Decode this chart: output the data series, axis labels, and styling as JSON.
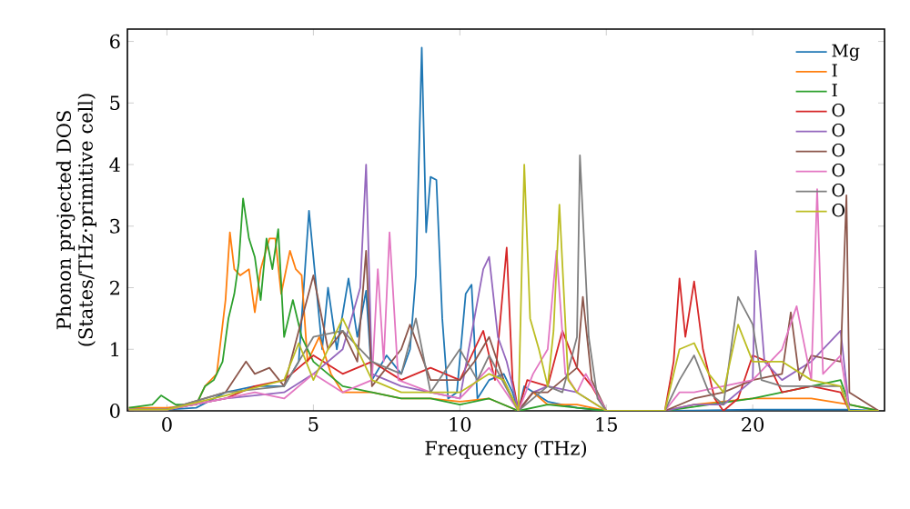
{
  "chart_data": {
    "type": "line",
    "xlabel": "Frequency (THz)",
    "ylabel": "Phonon projected DOS (States/THz·primitive cell)",
    "xlim": [
      -1.35,
      24.5
    ],
    "ylim": [
      0,
      6.2
    ],
    "xticks": [
      0,
      5,
      10,
      15,
      20
    ],
    "yticks": [
      0,
      1,
      2,
      3,
      4,
      5,
      6
    ],
    "legend": "top right",
    "series": [
      {
        "name": "Mg",
        "color": "#1f77b4",
        "x": [
          -1.3,
          0,
          1,
          2,
          3,
          4,
          4.5,
          4.85,
          5.3,
          5.5,
          5.8,
          6.2,
          6.5,
          6.8,
          7,
          7.5,
          8,
          8.3,
          8.5,
          8.7,
          8.85,
          9.0,
          9.2,
          9.4,
          9.6,
          9.9,
          10.2,
          10.4,
          10.6,
          11,
          11.5,
          11.8,
          12.0,
          12.2,
          13,
          14,
          15,
          17,
          20,
          23.3,
          24.3
        ],
        "values": [
          0.02,
          0.02,
          0.05,
          0.3,
          0.4,
          0.4,
          0.8,
          3.25,
          1.0,
          2.0,
          1.0,
          2.15,
          1.2,
          1.95,
          0.5,
          0.9,
          0.6,
          1.0,
          2.2,
          5.9,
          2.9,
          3.8,
          3.75,
          1.5,
          0.2,
          0.3,
          1.9,
          2.05,
          0.2,
          0.5,
          0.6,
          0.3,
          0,
          0.4,
          0.15,
          0.05,
          0,
          0,
          0.02,
          0.02,
          0
        ]
      },
      {
        "name": "I",
        "color": "#ff7f0e",
        "x": [
          -1.3,
          0,
          1,
          1.3,
          1.7,
          2.0,
          2.15,
          2.3,
          2.5,
          2.8,
          3.0,
          3.2,
          3.5,
          3.7,
          3.9,
          4.2,
          4.4,
          4.6,
          4.8,
          5.2,
          5.6,
          6,
          7,
          8,
          9,
          10,
          11,
          12,
          12.5,
          13,
          14,
          15,
          17,
          18,
          20,
          22,
          23.3,
          24.3
        ],
        "values": [
          0.05,
          0.05,
          0.1,
          0.4,
          0.6,
          1.8,
          2.9,
          2.3,
          2.2,
          2.3,
          1.6,
          2.3,
          2.8,
          2.8,
          1.9,
          2.6,
          2.3,
          2.2,
          0.8,
          1.2,
          0.6,
          0.3,
          0.3,
          0.2,
          0.2,
          0.15,
          0.2,
          0,
          0.3,
          0.1,
          0.1,
          0,
          0,
          0.1,
          0.2,
          0.2,
          0.1,
          0
        ]
      },
      {
        "name": "I",
        "color": "#2ca02c",
        "x": [
          -1.3,
          -0.5,
          -0.2,
          0.3,
          1,
          1.3,
          1.6,
          1.9,
          2.1,
          2.3,
          2.45,
          2.6,
          2.8,
          3.0,
          3.2,
          3.4,
          3.6,
          3.8,
          4.0,
          4.3,
          4.6,
          5,
          6,
          7,
          8,
          9,
          10,
          11,
          12,
          13,
          14,
          15,
          17,
          20,
          21,
          23,
          23.3,
          24.3
        ],
        "values": [
          0.05,
          0.1,
          0.25,
          0.1,
          0.1,
          0.4,
          0.5,
          0.8,
          1.5,
          1.9,
          2.4,
          3.45,
          2.8,
          2.5,
          1.8,
          2.8,
          2.3,
          2.95,
          1.2,
          1.8,
          1.2,
          0.8,
          0.4,
          0.3,
          0.2,
          0.2,
          0.1,
          0.2,
          0,
          0.1,
          0.05,
          0,
          0,
          0.2,
          0.3,
          0.5,
          0.1,
          0
        ]
      },
      {
        "name": "O",
        "color": "#d62728",
        "x": [
          -1.3,
          0,
          2,
          3,
          4,
          5,
          6,
          7,
          8,
          9,
          10,
          10.8,
          11.2,
          11.6,
          11.8,
          12,
          12.3,
          13,
          13.5,
          14,
          14.5,
          15,
          17,
          17.3,
          17.5,
          17.7,
          18,
          18.3,
          18.7,
          19,
          19.5,
          20,
          20.5,
          21,
          22,
          23,
          23.3,
          24.3
        ],
        "values": [
          0.02,
          0.02,
          0.2,
          0.4,
          0.5,
          0.9,
          0.6,
          0.8,
          0.5,
          0.7,
          0.5,
          1.3,
          0.5,
          2.65,
          0.5,
          0,
          0.5,
          0.4,
          1.3,
          0.7,
          0.4,
          0,
          0,
          0.8,
          2.15,
          1.2,
          2.1,
          1.0,
          0.2,
          0,
          0.2,
          0.9,
          0.8,
          0.3,
          0.4,
          0.3,
          0,
          0
        ]
      },
      {
        "name": "O",
        "color": "#9467bd",
        "x": [
          -1.3,
          0,
          2,
          4,
          5,
          6,
          6.6,
          6.8,
          7,
          8,
          9,
          10,
          10.8,
          11,
          11.3,
          11.6,
          12,
          12.5,
          13,
          14,
          15,
          17,
          18,
          19,
          20,
          20.1,
          20.4,
          21,
          22,
          23,
          23.3,
          24.3
        ],
        "values": [
          0.02,
          0.02,
          0.2,
          0.3,
          0.6,
          1.0,
          2.0,
          4.0,
          0.6,
          0.4,
          0.3,
          0.2,
          2.3,
          2.5,
          1.2,
          0.8,
          0,
          0.3,
          0.4,
          0.3,
          0,
          0,
          0.1,
          0.1,
          0.5,
          2.6,
          0.8,
          0.5,
          0.8,
          1.3,
          0,
          0
        ]
      },
      {
        "name": "O",
        "color": "#8c564b",
        "x": [
          -1.3,
          0,
          2,
          2.7,
          3,
          3.5,
          4,
          5,
          5.5,
          6,
          6.5,
          6.8,
          7,
          8,
          8.3,
          9,
          10,
          10.5,
          11,
          11.5,
          12,
          12.5,
          13,
          14,
          14.2,
          14.5,
          15,
          17,
          18,
          19,
          20,
          21,
          21.3,
          21.6,
          22,
          23,
          23.2,
          23.3,
          24.3
        ],
        "values": [
          0.02,
          0.02,
          0.3,
          0.8,
          0.6,
          0.7,
          0.4,
          2.2,
          1.0,
          1.3,
          0.8,
          2.6,
          0.4,
          1.0,
          1.4,
          0.5,
          0.5,
          0.8,
          1.2,
          0.5,
          0,
          0.3,
          0.3,
          0.7,
          1.85,
          0.5,
          0,
          0,
          0.2,
          0.3,
          0.5,
          0.6,
          1.6,
          0.5,
          0.9,
          0.8,
          3.5,
          0.3,
          0
        ]
      },
      {
        "name": "O",
        "color": "#e377c2",
        "x": [
          -1.3,
          0,
          2,
          3,
          4,
          5,
          6,
          7,
          7.2,
          7.4,
          7.6,
          7.9,
          9,
          10,
          11,
          12,
          12.5,
          13,
          13.3,
          13.6,
          14,
          14.3,
          15,
          17,
          17.5,
          18,
          20,
          21,
          21.5,
          22,
          22.2,
          22.4,
          23,
          23.3,
          24.3
        ],
        "values": [
          0.02,
          0.02,
          0.2,
          0.3,
          0.2,
          0.6,
          0.3,
          0.5,
          2.3,
          0.8,
          2.9,
          0.5,
          0.3,
          0.2,
          0.7,
          0,
          0.6,
          1.0,
          2.6,
          0.6,
          0.3,
          0.6,
          0,
          0,
          0.3,
          0.3,
          0.5,
          1.0,
          1.7,
          0.5,
          3.6,
          0.6,
          0.9,
          0,
          0
        ]
      },
      {
        "name": "O",
        "color": "#7f7f7f",
        "x": [
          -1.3,
          0,
          2,
          4,
          5,
          6,
          7,
          8,
          8.5,
          9,
          10,
          10.6,
          11,
          12,
          13,
          13.5,
          14,
          14.1,
          14.4,
          14.7,
          15,
          17,
          17.5,
          18,
          18.5,
          19,
          19.5,
          20,
          20.3,
          21,
          22,
          23,
          23.3,
          24.3
        ],
        "values": [
          0.02,
          0.02,
          0.3,
          0.4,
          1.2,
          1.3,
          0.8,
          0.6,
          1.5,
          0.3,
          1.0,
          0.5,
          0.9,
          0,
          0.4,
          0.3,
          1.2,
          4.15,
          1.2,
          0.2,
          0,
          0,
          0.5,
          0.9,
          0.3,
          0.1,
          1.85,
          1.4,
          0.5,
          0.4,
          0.4,
          0.4,
          0,
          0
        ]
      },
      {
        "name": "O",
        "color": "#bcbd22",
        "x": [
          -1.3,
          0,
          2,
          4,
          4.5,
          5,
          6,
          7,
          8,
          9,
          10,
          11,
          11.5,
          12,
          12.2,
          12.4,
          12.7,
          13,
          13.2,
          13.4,
          13.7,
          14,
          15,
          17,
          17.5,
          18,
          18.5,
          19,
          19.5,
          20,
          21,
          22,
          23,
          23.3,
          24.3
        ],
        "values": [
          0.02,
          0.02,
          0.25,
          0.5,
          1.1,
          0.5,
          1.5,
          0.5,
          0.3,
          0.3,
          0.3,
          0.6,
          0.5,
          0,
          4.0,
          1.5,
          1.0,
          0.4,
          1.3,
          3.35,
          0.5,
          0.3,
          0,
          0,
          1.0,
          1.1,
          0.6,
          0.3,
          1.4,
          0.8,
          0.8,
          0.5,
          0.4,
          0,
          0
        ]
      }
    ]
  }
}
